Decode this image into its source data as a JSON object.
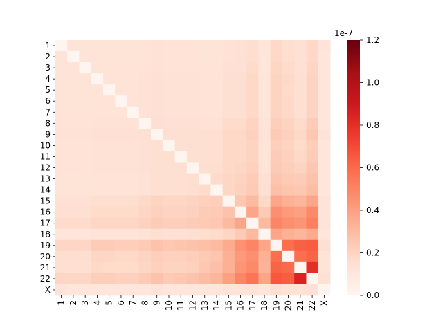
{
  "chart_data": {
    "type": "heatmap",
    "title": "",
    "xlabel": "",
    "ylabel": "",
    "row_labels": [
      "1",
      "2",
      "3",
      "4",
      "5",
      "6",
      "7",
      "8",
      "9",
      "10",
      "11",
      "12",
      "13",
      "14",
      "15",
      "16",
      "17",
      "18",
      "19",
      "20",
      "21",
      "22",
      "X"
    ],
    "col_labels": [
      "1",
      "2",
      "3",
      "4",
      "5",
      "6",
      "7",
      "8",
      "9",
      "10",
      "11",
      "12",
      "13",
      "14",
      "15",
      "16",
      "17",
      "18",
      "19",
      "20",
      "21",
      "22",
      "X"
    ],
    "values": [
      [
        0.0,
        0.12,
        0.12,
        0.125,
        0.125,
        0.125,
        0.125,
        0.13,
        0.135,
        0.13,
        0.13,
        0.13,
        0.125,
        0.125,
        0.135,
        0.14,
        0.16,
        0.11,
        0.18,
        0.16,
        0.14,
        0.18,
        0.12
      ],
      [
        0.12,
        0.0,
        0.12,
        0.125,
        0.125,
        0.125,
        0.125,
        0.13,
        0.135,
        0.13,
        0.13,
        0.13,
        0.125,
        0.125,
        0.135,
        0.14,
        0.16,
        0.11,
        0.18,
        0.16,
        0.14,
        0.18,
        0.11
      ],
      [
        0.12,
        0.12,
        0.0,
        0.125,
        0.125,
        0.125,
        0.125,
        0.13,
        0.135,
        0.13,
        0.13,
        0.13,
        0.125,
        0.125,
        0.14,
        0.14,
        0.17,
        0.11,
        0.19,
        0.17,
        0.14,
        0.19,
        0.11
      ],
      [
        0.125,
        0.125,
        0.125,
        0.0,
        0.125,
        0.13,
        0.13,
        0.135,
        0.14,
        0.135,
        0.135,
        0.135,
        0.13,
        0.13,
        0.15,
        0.15,
        0.18,
        0.115,
        0.2,
        0.18,
        0.15,
        0.2,
        0.11
      ],
      [
        0.125,
        0.125,
        0.125,
        0.125,
        0.0,
        0.13,
        0.13,
        0.135,
        0.14,
        0.135,
        0.135,
        0.135,
        0.13,
        0.13,
        0.15,
        0.15,
        0.18,
        0.115,
        0.2,
        0.17,
        0.15,
        0.2,
        0.11
      ],
      [
        0.125,
        0.125,
        0.125,
        0.13,
        0.13,
        0.0,
        0.13,
        0.135,
        0.14,
        0.135,
        0.135,
        0.135,
        0.13,
        0.13,
        0.15,
        0.15,
        0.18,
        0.115,
        0.2,
        0.18,
        0.15,
        0.2,
        0.11
      ],
      [
        0.125,
        0.125,
        0.125,
        0.13,
        0.13,
        0.13,
        0.0,
        0.135,
        0.14,
        0.135,
        0.135,
        0.135,
        0.13,
        0.13,
        0.15,
        0.15,
        0.18,
        0.115,
        0.2,
        0.18,
        0.15,
        0.2,
        0.11
      ],
      [
        0.13,
        0.13,
        0.13,
        0.135,
        0.135,
        0.135,
        0.135,
        0.0,
        0.15,
        0.14,
        0.14,
        0.14,
        0.135,
        0.135,
        0.17,
        0.17,
        0.2,
        0.12,
        0.22,
        0.2,
        0.17,
        0.23,
        0.11
      ],
      [
        0.135,
        0.135,
        0.135,
        0.14,
        0.14,
        0.14,
        0.14,
        0.15,
        0.0,
        0.15,
        0.15,
        0.15,
        0.15,
        0.15,
        0.18,
        0.18,
        0.21,
        0.13,
        0.24,
        0.21,
        0.18,
        0.25,
        0.12
      ],
      [
        0.13,
        0.13,
        0.13,
        0.135,
        0.135,
        0.135,
        0.135,
        0.14,
        0.15,
        0.0,
        0.15,
        0.15,
        0.15,
        0.15,
        0.18,
        0.18,
        0.2,
        0.125,
        0.22,
        0.2,
        0.17,
        0.22,
        0.11
      ],
      [
        0.13,
        0.13,
        0.13,
        0.135,
        0.135,
        0.135,
        0.135,
        0.14,
        0.15,
        0.15,
        0.0,
        0.15,
        0.15,
        0.15,
        0.18,
        0.18,
        0.2,
        0.125,
        0.23,
        0.21,
        0.18,
        0.23,
        0.11
      ],
      [
        0.13,
        0.13,
        0.13,
        0.135,
        0.135,
        0.135,
        0.135,
        0.14,
        0.15,
        0.15,
        0.15,
        0.0,
        0.16,
        0.16,
        0.18,
        0.19,
        0.21,
        0.13,
        0.24,
        0.22,
        0.2,
        0.25,
        0.11
      ],
      [
        0.125,
        0.125,
        0.125,
        0.13,
        0.13,
        0.13,
        0.13,
        0.135,
        0.15,
        0.15,
        0.15,
        0.16,
        0.0,
        0.17,
        0.19,
        0.2,
        0.23,
        0.14,
        0.26,
        0.24,
        0.23,
        0.27,
        0.11
      ],
      [
        0.125,
        0.125,
        0.125,
        0.13,
        0.13,
        0.13,
        0.13,
        0.135,
        0.15,
        0.15,
        0.15,
        0.16,
        0.17,
        0.0,
        0.19,
        0.21,
        0.24,
        0.15,
        0.28,
        0.26,
        0.25,
        0.29,
        0.11
      ],
      [
        0.14,
        0.14,
        0.14,
        0.16,
        0.16,
        0.16,
        0.16,
        0.18,
        0.2,
        0.19,
        0.19,
        0.2,
        0.21,
        0.22,
        0.0,
        0.25,
        0.3,
        0.18,
        0.38,
        0.34,
        0.32,
        0.38,
        0.12
      ],
      [
        0.15,
        0.15,
        0.15,
        0.17,
        0.17,
        0.17,
        0.17,
        0.19,
        0.21,
        0.2,
        0.2,
        0.21,
        0.23,
        0.24,
        0.27,
        0.0,
        0.38,
        0.24,
        0.46,
        0.42,
        0.4,
        0.48,
        0.12
      ],
      [
        0.17,
        0.17,
        0.17,
        0.19,
        0.19,
        0.19,
        0.19,
        0.21,
        0.23,
        0.22,
        0.22,
        0.23,
        0.24,
        0.25,
        0.3,
        0.38,
        0.0,
        0.3,
        0.5,
        0.46,
        0.44,
        0.52,
        0.13
      ],
      [
        0.115,
        0.115,
        0.115,
        0.125,
        0.125,
        0.125,
        0.125,
        0.135,
        0.15,
        0.14,
        0.14,
        0.15,
        0.16,
        0.17,
        0.19,
        0.24,
        0.3,
        0.0,
        0.38,
        0.34,
        0.32,
        0.36,
        0.11
      ],
      [
        0.19,
        0.19,
        0.19,
        0.23,
        0.23,
        0.22,
        0.22,
        0.24,
        0.27,
        0.25,
        0.26,
        0.27,
        0.28,
        0.3,
        0.36,
        0.45,
        0.5,
        0.38,
        0.0,
        0.58,
        0.63,
        0.64,
        0.15
      ],
      [
        0.16,
        0.16,
        0.16,
        0.19,
        0.19,
        0.18,
        0.18,
        0.2,
        0.22,
        0.21,
        0.21,
        0.22,
        0.24,
        0.26,
        0.34,
        0.42,
        0.46,
        0.34,
        0.58,
        0.0,
        0.58,
        0.62,
        0.13
      ],
      [
        0.15,
        0.15,
        0.15,
        0.18,
        0.17,
        0.17,
        0.17,
        0.19,
        0.21,
        0.2,
        0.2,
        0.21,
        0.25,
        0.28,
        0.34,
        0.44,
        0.48,
        0.33,
        0.62,
        0.6,
        0.0,
        0.8,
        0.13
      ],
      [
        0.19,
        0.19,
        0.19,
        0.22,
        0.22,
        0.21,
        0.21,
        0.24,
        0.27,
        0.24,
        0.25,
        0.27,
        0.29,
        0.32,
        0.4,
        0.5,
        0.56,
        0.38,
        0.66,
        0.64,
        0.85,
        0.0,
        0.14
      ],
      [
        0.12,
        0.11,
        0.11,
        0.11,
        0.11,
        0.11,
        0.11,
        0.11,
        0.12,
        0.11,
        0.11,
        0.11,
        0.11,
        0.11,
        0.12,
        0.12,
        0.13,
        0.11,
        0.15,
        0.13,
        0.13,
        0.14,
        0.0
      ]
    ],
    "value_scale_label": "1e-7",
    "colorbar": {
      "range": [
        0.0,
        1.2
      ],
      "ticks": [
        0.0,
        0.2,
        0.4,
        0.6,
        0.8,
        1.0,
        1.2
      ],
      "tick_labels": [
        "0.0",
        "0.2",
        "0.4",
        "0.6",
        "0.8",
        "1.0",
        "1.2"
      ],
      "colormap": "Reds",
      "colormap_stops": [
        "#fff5f0",
        "#fee0d2",
        "#fcbba1",
        "#fc9272",
        "#fb6a4a",
        "#ef3b2c",
        "#cb181d",
        "#a50f15",
        "#67000d"
      ]
    },
    "grid": false,
    "legend": "colorbar-right"
  }
}
